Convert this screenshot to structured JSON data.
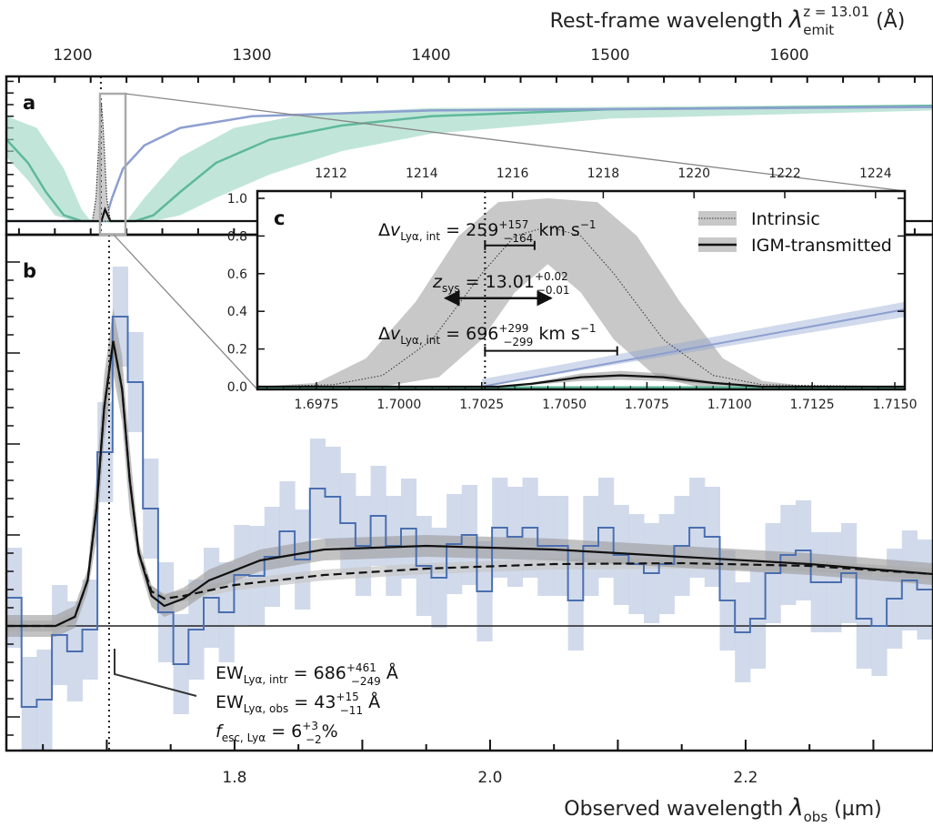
{
  "chart_data": [
    {
      "panel": "a",
      "type": "line",
      "label": "a",
      "xlabel_top": {
        "main": "Rest-frame wavelength ",
        "symbol": "λ",
        "sub": "emit",
        "sup": "z = 13.01",
        "unit": " (Å)"
      },
      "x_ticks": [
        1200,
        1300,
        1400,
        1500,
        1600
      ],
      "xlim": [
        1163,
        1680
      ],
      "ylim": [
        -0.12,
        1.3
      ],
      "colors": {
        "green_line": "#5fb89c",
        "green_band": "#9fd8c4",
        "blue_line": "#8c9fcf",
        "igm": "#111111"
      },
      "green_center": [
        [
          1163,
          0.7
        ],
        [
          1175,
          0.5
        ],
        [
          1185,
          0.25
        ],
        [
          1195,
          0.05
        ],
        [
          1205,
          0
        ],
        [
          1235,
          0
        ],
        [
          1245,
          0.05
        ],
        [
          1260,
          0.25
        ],
        [
          1280,
          0.5
        ],
        [
          1310,
          0.7
        ],
        [
          1350,
          0.82
        ],
        [
          1400,
          0.9
        ],
        [
          1500,
          0.96
        ],
        [
          1680,
          0.99
        ]
      ],
      "green_upper": [
        [
          1163,
          0.9
        ],
        [
          1180,
          0.8
        ],
        [
          1195,
          0.45
        ],
        [
          1205,
          0.1
        ],
        [
          1210,
          0
        ],
        [
          1230,
          0
        ],
        [
          1240,
          0.2
        ],
        [
          1260,
          0.55
        ],
        [
          1290,
          0.8
        ],
        [
          1330,
          0.92
        ],
        [
          1400,
          0.97
        ],
        [
          1680,
          1.0
        ]
      ],
      "green_lower": [
        [
          1163,
          0.55
        ],
        [
          1175,
          0.35
        ],
        [
          1190,
          0.05
        ],
        [
          1200,
          0
        ],
        [
          1245,
          0
        ],
        [
          1260,
          0.05
        ],
        [
          1280,
          0.2
        ],
        [
          1310,
          0.4
        ],
        [
          1350,
          0.6
        ],
        [
          1400,
          0.75
        ],
        [
          1500,
          0.88
        ],
        [
          1680,
          0.95
        ]
      ],
      "blue": [
        [
          1163,
          0
        ],
        [
          1218,
          0
        ],
        [
          1222,
          0.2
        ],
        [
          1228,
          0.45
        ],
        [
          1240,
          0.65
        ],
        [
          1260,
          0.8
        ],
        [
          1300,
          0.9
        ],
        [
          1400,
          0.95
        ],
        [
          1680,
          0.98
        ]
      ],
      "intrinsic": [
        [
          1211,
          0
        ],
        [
          1213,
          0.2
        ],
        [
          1215,
          0.8
        ],
        [
          1216,
          1.02
        ],
        [
          1217,
          0.8
        ],
        [
          1219,
          0.2
        ],
        [
          1221,
          0
        ]
      ],
      "igm": [
        [
          1163,
          0
        ],
        [
          1216,
          0
        ],
        [
          1218,
          0.1
        ],
        [
          1221,
          0
        ],
        [
          1680,
          0
        ]
      ],
      "systemic_rest": 1215.7,
      "zoom_box": [
        1211,
        1226
      ]
    },
    {
      "panel": "b",
      "type": "line",
      "label": "b",
      "xlabel": {
        "main": "Observed wavelength ",
        "symbol": "λ",
        "sub": "obs",
        "unit": " (µm)"
      },
      "x_ticks": [
        1.8,
        2.0,
        2.2
      ],
      "xlim": [
        1.6214,
        2.3466
      ],
      "ylim": [
        -1.37,
        4.3
      ],
      "systemic_obs": 1.7018,
      "colors": {
        "hist": "#4a6fb0",
        "err": "#c9d3e8",
        "model": "#111111",
        "band": "#9a9a9a"
      },
      "hist_start": 1.6214,
      "hist_width": 0.01188,
      "hist_err": 0.55,
      "hist_values": [
        0.31,
        -0.89,
        -0.81,
        -0.1,
        -0.28,
        -0.04,
        1.91,
        3.4,
        2.68,
        1.29,
        0.15,
        -0.42,
        -0.04,
        0.31,
        0.15,
        0.56,
        0.55,
        0.76,
        1.04,
        0.73,
        1.51,
        1.42,
        1.13,
        0.88,
        1.21,
        0.88,
        1.07,
        0.66,
        0.53,
        0.9,
        1.0,
        0.38,
        1.08,
        0.98,
        1.08,
        0.88,
        0.88,
        0.28,
        0.88,
        1.08,
        0.78,
        0.68,
        0.58,
        0.68,
        0.88,
        1.08,
        0.98,
        0.28,
        -0.07,
        0.08,
        0.58,
        0.78,
        0.83,
        0.48,
        0.48,
        0.58,
        0.08,
        0.0,
        0.3,
        0.5,
        0.4
      ],
      "model_solid": [
        [
          1.6214,
          0
        ],
        [
          1.66,
          0
        ],
        [
          1.675,
          0.1
        ],
        [
          1.685,
          0.5
        ],
        [
          1.692,
          1.3
        ],
        [
          1.698,
          2.4
        ],
        [
          1.705,
          3.13
        ],
        [
          1.712,
          2.6
        ],
        [
          1.718,
          1.6
        ],
        [
          1.725,
          0.8
        ],
        [
          1.735,
          0.33
        ],
        [
          1.745,
          0.22
        ],
        [
          1.76,
          0.3
        ],
        [
          1.78,
          0.5
        ],
        [
          1.82,
          0.72
        ],
        [
          1.87,
          0.84
        ],
        [
          1.95,
          0.88
        ],
        [
          2.05,
          0.84
        ],
        [
          2.15,
          0.76
        ],
        [
          2.25,
          0.68
        ],
        [
          2.3466,
          0.57
        ]
      ],
      "model_dashed": [
        [
          1.6214,
          0
        ],
        [
          1.66,
          0
        ],
        [
          1.675,
          0.1
        ],
        [
          1.685,
          0.5
        ],
        [
          1.692,
          1.3
        ],
        [
          1.698,
          2.4
        ],
        [
          1.705,
          3.13
        ],
        [
          1.712,
          2.6
        ],
        [
          1.718,
          1.6
        ],
        [
          1.725,
          0.8
        ],
        [
          1.735,
          0.38
        ],
        [
          1.745,
          0.3
        ],
        [
          1.76,
          0.33
        ],
        [
          1.8,
          0.45
        ],
        [
          1.87,
          0.56
        ],
        [
          1.95,
          0.63
        ],
        [
          2.05,
          0.68
        ],
        [
          2.15,
          0.69
        ],
        [
          2.25,
          0.66
        ],
        [
          2.3466,
          0.57
        ]
      ],
      "annotations": {
        "ew_intr": {
          "a": "EW",
          "sub": "Lyα, intr",
          "b": " = 686",
          "sup": "+461",
          "sub2": "−249",
          "c": " Å"
        },
        "ew_obs": {
          "a": "EW",
          "sub": "Lyα, obs",
          "b": " = 43",
          "sup": "+15",
          "sub2": "−11",
          "c": " Å"
        },
        "fesc": {
          "a": "f",
          "sub": "esc, Lyα",
          "b": " = 6",
          "sup": "+3",
          "sub2": "−2",
          "c": "%"
        }
      }
    },
    {
      "panel": "c",
      "type": "line",
      "label": "c",
      "x_ticks": [
        1.6975,
        1.7,
        1.7025,
        1.705,
        1.7075,
        1.71,
        1.7125,
        1.715
      ],
      "x_tick_labels": [
        "1.6975",
        "1.7000",
        "1.7025",
        "1.7050",
        "1.7075",
        "1.7100",
        "1.7125",
        "1.7150"
      ],
      "top_ticks": [
        1212,
        1214,
        1216,
        1218,
        1220,
        1222,
        1224
      ],
      "y_ticks": [
        0.0,
        0.2,
        0.4,
        0.6,
        0.8,
        1.0
      ],
      "y_tick_labels": [
        "0.0",
        "0.2",
        "0.4",
        "0.6",
        "0.8",
        "1.0"
      ],
      "xlim": [
        1.6957,
        1.7153
      ],
      "ylim": [
        -0.01,
        1.04
      ],
      "legend": {
        "position": "top-right",
        "entries": [
          "Intrinsic",
          "IGM-transmitted"
        ]
      },
      "intrinsic_upper": [
        [
          1.6957,
          0
        ],
        [
          1.6975,
          0.02
        ],
        [
          1.699,
          0.15
        ],
        [
          1.7005,
          0.45
        ],
        [
          1.7018,
          0.8
        ],
        [
          1.703,
          0.98
        ],
        [
          1.7045,
          1.0
        ],
        [
          1.706,
          0.98
        ],
        [
          1.7072,
          0.8
        ],
        [
          1.7085,
          0.45
        ],
        [
          1.7098,
          0.15
        ],
        [
          1.711,
          0.03
        ],
        [
          1.7125,
          0
        ],
        [
          1.7153,
          0
        ]
      ],
      "intrinsic_lower": [
        [
          1.6957,
          0
        ],
        [
          1.6995,
          0
        ],
        [
          1.7012,
          0.05
        ],
        [
          1.7025,
          0.25
        ],
        [
          1.7035,
          0.5
        ],
        [
          1.7045,
          0.65
        ],
        [
          1.7055,
          0.5
        ],
        [
          1.7065,
          0.25
        ],
        [
          1.7078,
          0.05
        ],
        [
          1.709,
          0
        ],
        [
          1.7153,
          0
        ]
      ],
      "intrinsic_line": [
        [
          1.6957,
          0
        ],
        [
          1.698,
          0.01
        ],
        [
          1.6995,
          0.06
        ],
        [
          1.701,
          0.25
        ],
        [
          1.7025,
          0.6
        ],
        [
          1.7035,
          0.8
        ],
        [
          1.7045,
          0.85
        ],
        [
          1.7055,
          0.8
        ],
        [
          1.7065,
          0.6
        ],
        [
          1.708,
          0.25
        ],
        [
          1.7095,
          0.06
        ],
        [
          1.711,
          0.01
        ],
        [
          1.7153,
          0
        ]
      ],
      "igm_line": [
        [
          1.6957,
          0
        ],
        [
          1.703,
          0
        ],
        [
          1.704,
          0.015
        ],
        [
          1.7055,
          0.05
        ],
        [
          1.7067,
          0.06
        ],
        [
          1.708,
          0.05
        ],
        [
          1.7095,
          0.02
        ],
        [
          1.711,
          0
        ],
        [
          1.7153,
          0
        ]
      ],
      "blue_line": [
        [
          1.7025,
          0
        ],
        [
          1.7153,
          0.41
        ]
      ],
      "blue_halfwidth": 0.04,
      "systemic": 1.7026,
      "dv_int_1": {
        "a": "Δ",
        "v": "v",
        "sub": "Lyα, int",
        "b": " = 259",
        "sup": "+157",
        "sub2": "−164",
        "c": " km s",
        "exp": "−1",
        "range": [
          1.7026,
          1.7041
        ],
        "level": 0.75
      },
      "zsys": {
        "a": "z",
        "sub": "sys",
        "b": " = 13.01",
        "sup": "+0.02",
        "sub2": "−0.01",
        "range": [
          1.7014,
          1.7046
        ],
        "level": 0.47
      },
      "dv_int_2": {
        "a": "Δ",
        "v": "v",
        "sub": "Lyα, int",
        "b": " = 696",
        "sup": "+299",
        "sub2": "−299",
        "c": " km s",
        "exp": "−1",
        "range": [
          1.7026,
          1.7066
        ],
        "level": 0.19
      }
    }
  ]
}
